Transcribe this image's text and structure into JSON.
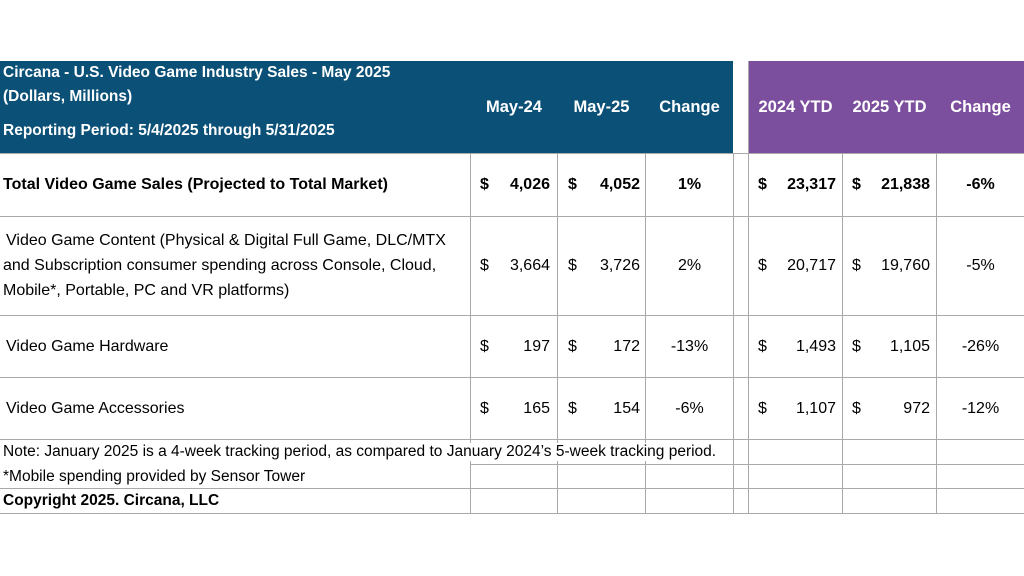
{
  "header": {
    "title_line1": "Circana - U.S. Video Game Industry Sales - May 2025",
    "title_line2": "(Dollars, Millions)",
    "title_line3": "Reporting Period: 5/4/2025 through 5/31/2025",
    "columns": [
      "May-24",
      "May-25",
      "Change",
      "2024 YTD",
      "2025 YTD",
      "Change"
    ]
  },
  "colors": {
    "header_blue": "#0b5077",
    "header_purple": "#7c4f9e",
    "grid": "#a9a9a9"
  },
  "currency_symbol": "$",
  "rows": [
    {
      "label": "Total Video Game Sales (Projected to Total Market)",
      "may24": "4,026",
      "may25": "4,052",
      "change": "1%",
      "ytd24": "23,317",
      "ytd25": "21,838",
      "ytd_change": "-6%"
    },
    {
      "label_lines": [
        "Video Game Content (Physical & Digital Full Game, DLC/MTX",
        "and Subscription consumer spending across Console, Cloud,",
        "Mobile*, Portable, PC and VR platforms)"
      ],
      "may24": "3,664",
      "may25": "3,726",
      "change": "2%",
      "ytd24": "20,717",
      "ytd25": "19,760",
      "ytd_change": "-5%"
    },
    {
      "label": "Video Game Hardware",
      "may24": "197",
      "may25": "172",
      "change": "-13%",
      "ytd24": "1,493",
      "ytd25": "1,105",
      "ytd_change": "-26%"
    },
    {
      "label": "Video Game Accessories",
      "may24": "165",
      "may25": "154",
      "change": "-6%",
      "ytd24": "1,107",
      "ytd25": "972",
      "ytd_change": "-12%"
    }
  ],
  "footer": {
    "note": "Note: January 2025 is a 4-week tracking period, as compared to January 2024’s 5-week tracking period.",
    "mobile": "*Mobile spending provided by Sensor Tower",
    "copyright": "Copyright 2025. Circana, LLC"
  }
}
